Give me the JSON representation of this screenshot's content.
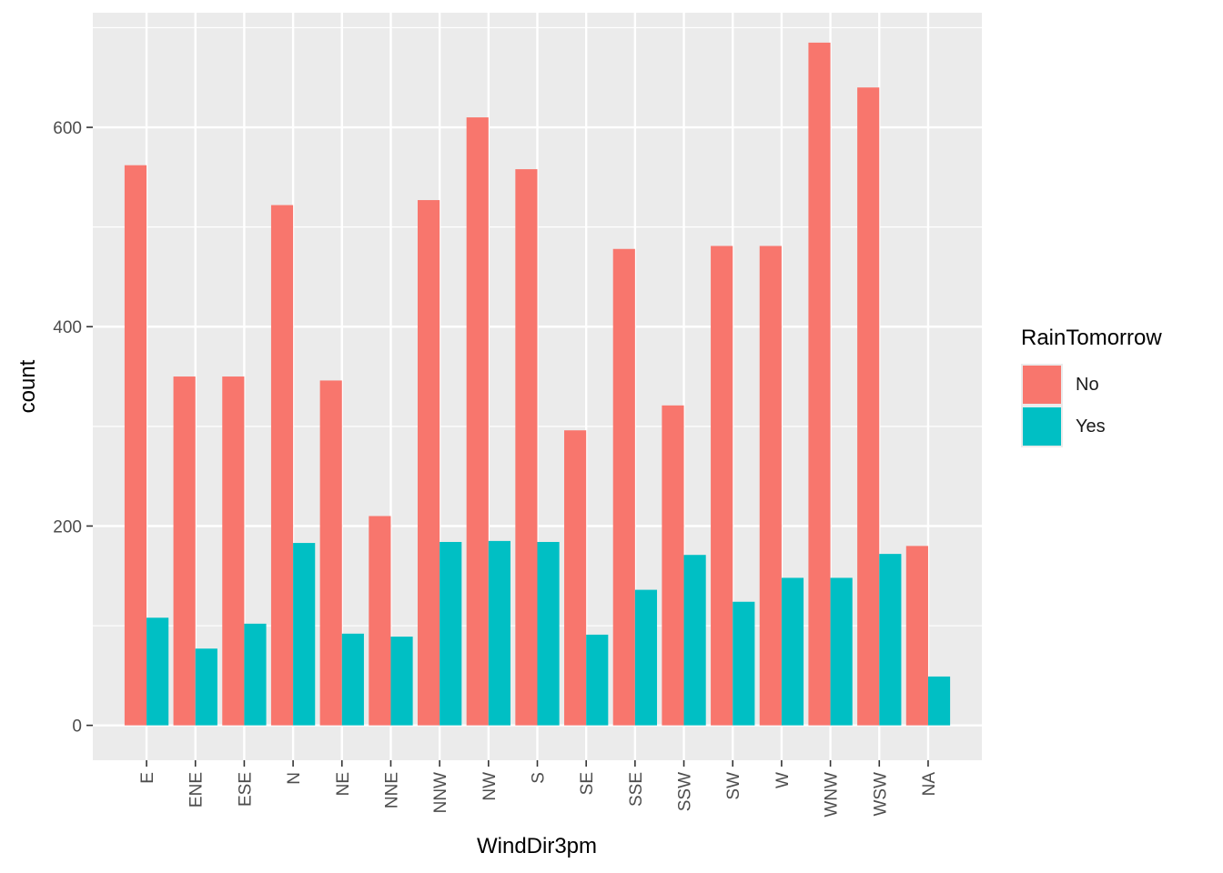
{
  "chart_data": {
    "type": "bar",
    "xlabel": "WindDir3pm",
    "ylabel": "count",
    "ylim": [
      -35,
      715
    ],
    "yticks": [
      0,
      200,
      400,
      600
    ],
    "grid": true,
    "legend_position": "right",
    "categories": [
      "E",
      "ENE",
      "ESE",
      "N",
      "NE",
      "NNE",
      "NNW",
      "NW",
      "S",
      "SE",
      "SSE",
      "SSW",
      "SW",
      "W",
      "WNW",
      "WSW",
      "NA"
    ],
    "series": [
      {
        "name": "No",
        "color": "#F8766D",
        "values": [
          562,
          350,
          350,
          522,
          346,
          210,
          527,
          610,
          558,
          296,
          478,
          321,
          481,
          481,
          685,
          640,
          180
        ]
      },
      {
        "name": "Yes",
        "color": "#00BFC4",
        "values": [
          108,
          77,
          102,
          183,
          92,
          89,
          184,
          185,
          184,
          91,
          136,
          171,
          124,
          148,
          148,
          172,
          49
        ]
      }
    ]
  },
  "legend": {
    "title": "RainTomorrow",
    "items": [
      {
        "label": "No",
        "color": "#F8766D"
      },
      {
        "label": "Yes",
        "color": "#00BFC4"
      }
    ]
  }
}
